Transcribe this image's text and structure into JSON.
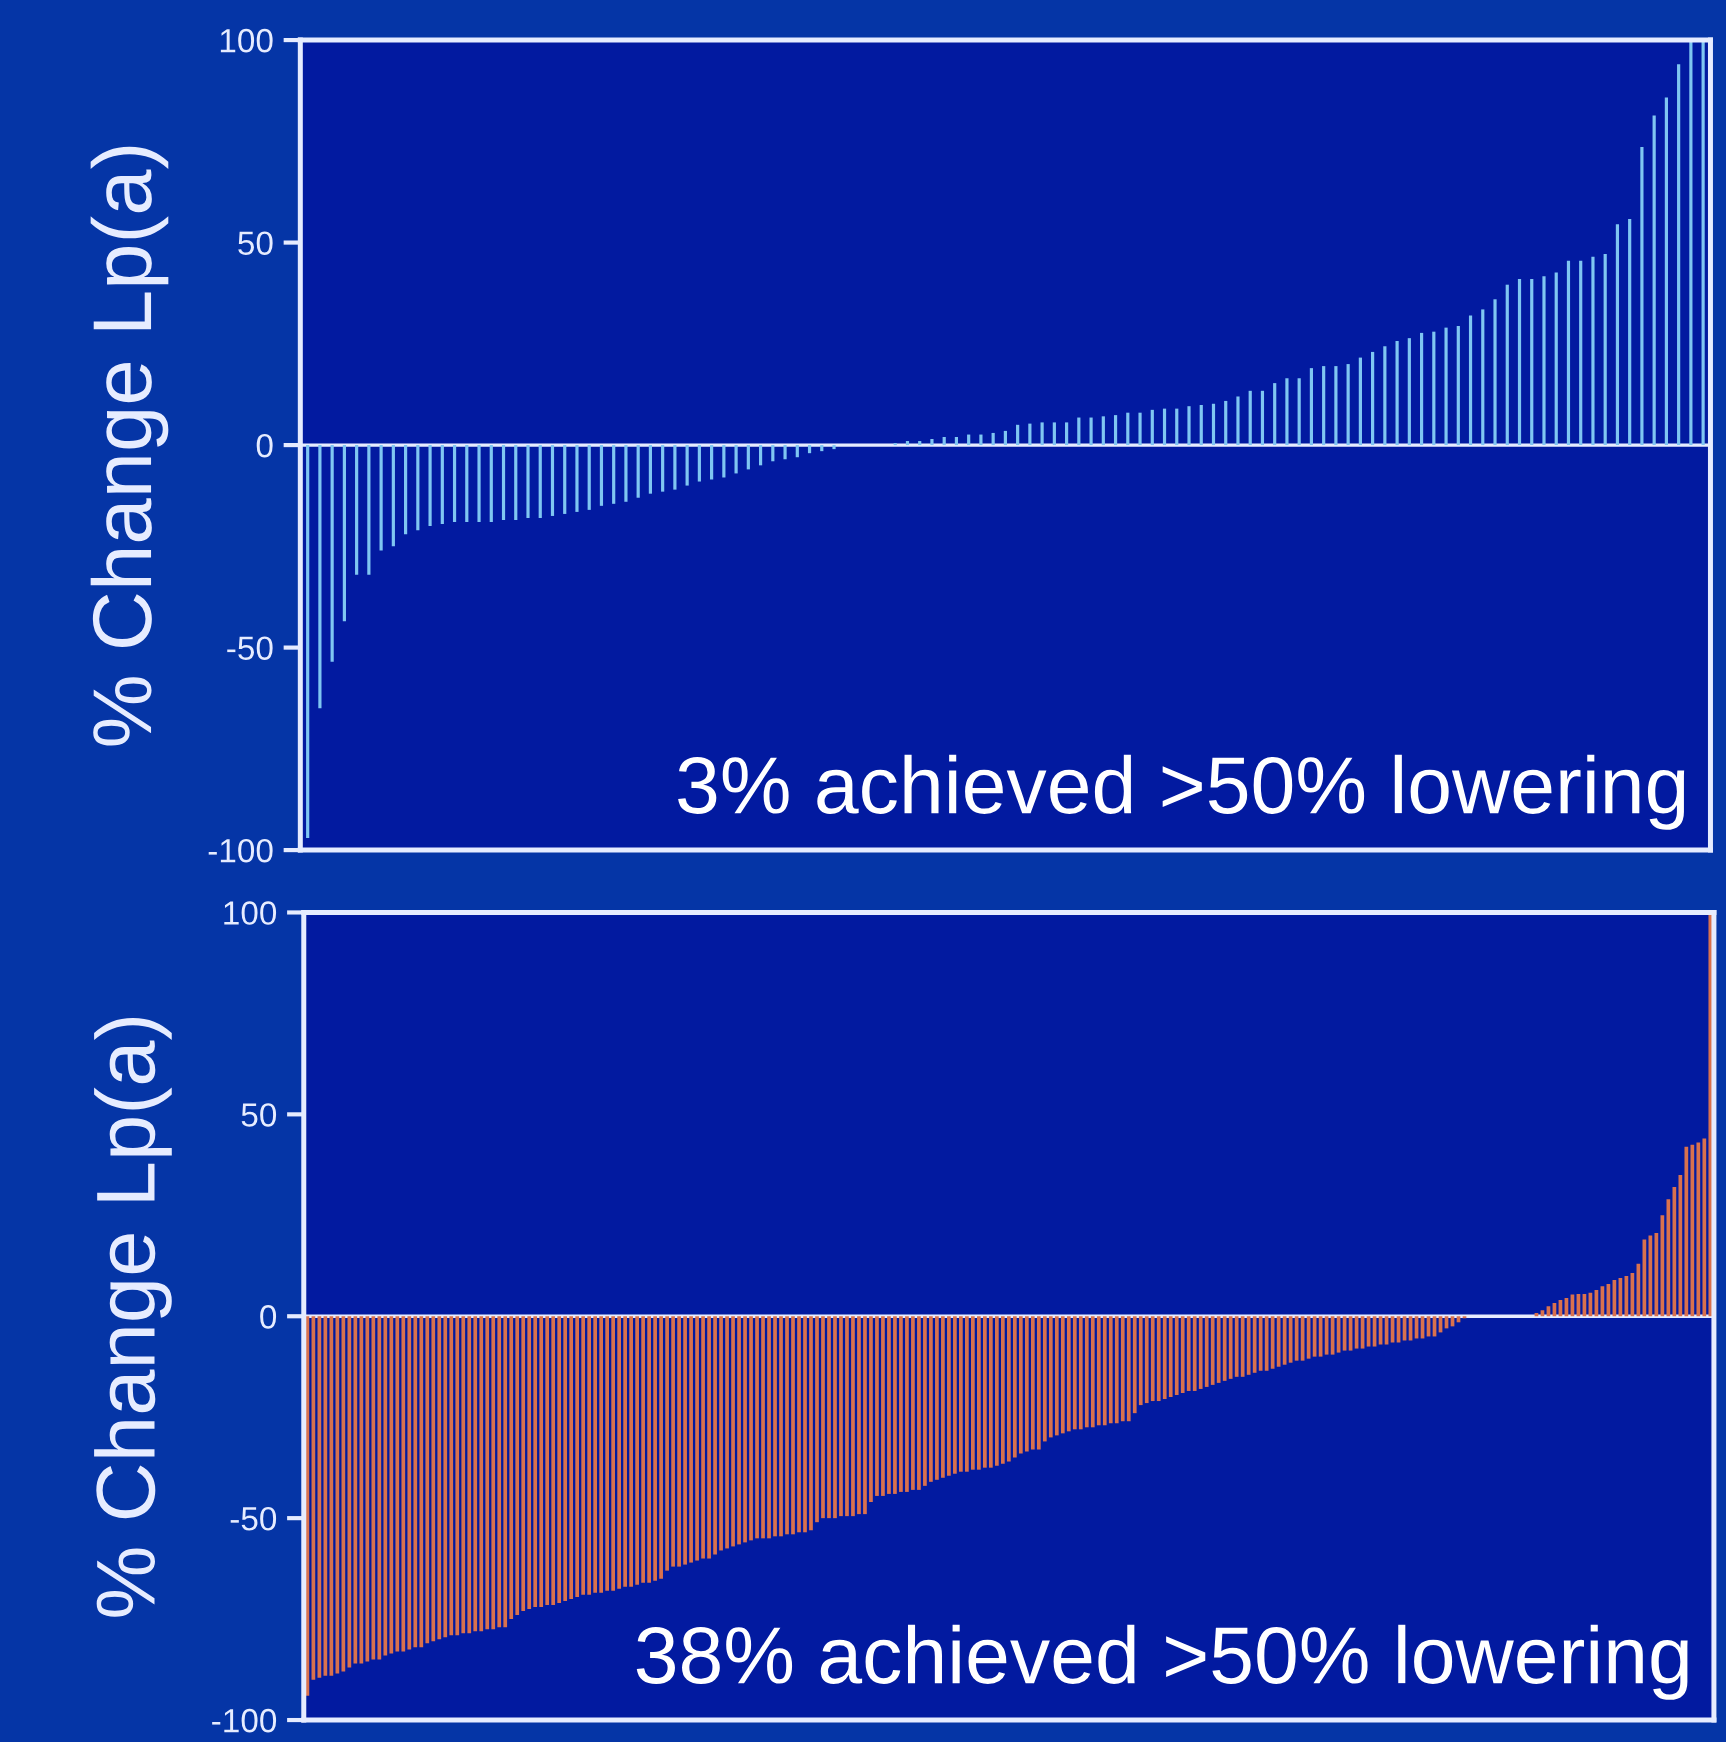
{
  "chart_data": [
    {
      "type": "bar",
      "ylabel": "% Change Lp(a)",
      "color": "#7fc6f2",
      "ylim": [
        -100,
        100
      ],
      "yticks": [
        -100,
        -50,
        0,
        50,
        100
      ],
      "grid": false,
      "legend": false,
      "tick_labels": "y",
      "ref_lines": [
        {
          "axis": "y",
          "value": 0,
          "color": "#e6ecff"
        }
      ],
      "annotations": [
        "3% achieved >50% lowering"
      ],
      "categories": [
        null,
        null,
        null,
        null,
        null,
        null,
        null,
        null,
        null,
        null,
        null,
        null,
        null,
        null,
        null,
        null,
        null,
        null,
        null,
        null,
        null,
        null,
        null,
        null,
        null,
        null,
        null,
        null,
        null,
        null,
        null,
        null,
        null,
        null,
        null,
        null,
        null,
        null,
        null,
        null,
        null,
        null,
        null,
        null,
        null,
        null,
        null,
        null,
        null,
        null,
        null,
        null,
        null,
        null,
        null,
        null,
        null,
        null,
        null,
        null,
        null,
        null,
        null,
        null,
        null,
        null,
        null,
        null,
        null,
        null,
        null,
        null,
        null,
        null,
        null,
        null,
        null,
        null,
        null,
        null,
        null,
        null,
        null,
        null,
        null,
        null,
        null,
        null,
        null,
        null,
        null,
        null,
        null,
        null,
        null,
        null,
        null,
        null,
        null,
        null,
        null,
        null,
        null,
        null,
        null,
        null,
        null,
        null,
        null,
        null,
        null,
        null,
        null,
        null,
        null
      ],
      "values": [
        -97,
        -65,
        -53.5,
        -43.5,
        -32,
        -32,
        -26,
        -25,
        -22,
        -21,
        -20,
        -19.5,
        -19,
        -19,
        -19,
        -19,
        -18.5,
        -18.5,
        -18,
        -18,
        -17.5,
        -17,
        -16.5,
        -16,
        -15,
        -14.5,
        -14,
        -13,
        -12,
        -11.5,
        -11,
        -10,
        -9,
        -8.5,
        -8,
        -7,
        -6,
        -5,
        -4,
        -3.5,
        -3,
        -2,
        -1.5,
        -1,
        0,
        0,
        0,
        0,
        0.5,
        1,
        1,
        1.5,
        2,
        2,
        2.6,
        2.6,
        3,
        3.5,
        5,
        5.3,
        5.6,
        5.6,
        5.6,
        6.8,
        6.8,
        7.1,
        7.4,
        8,
        8,
        8.7,
        9,
        9,
        9.6,
        9.9,
        10.2,
        10.9,
        12,
        13.4,
        13.4,
        15.3,
        16.5,
        16.5,
        19,
        19.5,
        19.5,
        20,
        21.6,
        23,
        24.4,
        25.7,
        26.4,
        27.7,
        28,
        29,
        29.4,
        32,
        33.5,
        36,
        39.6,
        41,
        41,
        41.7,
        42.6,
        45.5,
        45.5,
        46.5,
        47.2,
        54.5,
        55.8,
        73.6,
        81.4,
        85.8,
        94,
        100,
        100
      ]
    },
    {
      "type": "bar",
      "ylabel": "% Change Lp(a)",
      "color": "#d9714e",
      "ylim": [
        -100,
        100
      ],
      "yticks": [
        -100,
        -50,
        0,
        50,
        100
      ],
      "grid": false,
      "legend": false,
      "tick_labels": "y",
      "ref_lines": [
        {
          "axis": "y",
          "value": 0,
          "color": "#e6ecff"
        }
      ],
      "annotations": [
        "38% achieved >50% lowering"
      ],
      "categories": [
        null,
        null,
        null,
        null,
        null,
        null,
        null,
        null,
        null,
        null,
        null,
        null,
        null,
        null,
        null,
        null,
        null,
        null,
        null,
        null,
        null,
        null,
        null,
        null,
        null,
        null,
        null,
        null,
        null,
        null,
        null,
        null,
        null,
        null,
        null,
        null,
        null,
        null,
        null,
        null,
        null,
        null,
        null,
        null,
        null,
        null,
        null,
        null,
        null,
        null,
        null,
        null,
        null,
        null,
        null,
        null,
        null,
        null,
        null,
        null,
        null,
        null,
        null,
        null,
        null,
        null,
        null,
        null,
        null,
        null,
        null,
        null,
        null,
        null,
        null,
        null,
        null,
        null,
        null,
        null,
        null,
        null,
        null,
        null,
        null,
        null,
        null,
        null,
        null,
        null,
        null,
        null,
        null,
        null,
        null,
        null,
        null,
        null,
        null,
        null,
        null,
        null,
        null,
        null,
        null,
        null,
        null,
        null,
        null,
        null,
        null,
        null,
        null,
        null,
        null,
        null,
        null,
        null,
        null,
        null,
        null,
        null,
        null,
        null,
        null,
        null,
        null,
        null,
        null,
        null,
        null,
        null,
        null,
        null,
        null,
        null,
        null,
        null,
        null,
        null,
        null,
        null,
        null,
        null,
        null,
        null,
        null,
        null,
        null,
        null,
        null,
        null,
        null,
        null,
        null,
        null,
        null,
        null,
        null,
        null,
        null,
        null,
        null,
        null,
        null,
        null,
        null,
        null,
        null,
        null,
        null,
        null,
        null,
        null,
        null,
        null,
        null,
        null,
        null,
        null,
        null,
        null,
        null,
        null,
        null,
        null,
        null,
        null,
        null,
        null,
        null,
        null,
        null,
        null,
        null,
        null,
        null,
        null,
        null,
        null,
        null,
        null,
        null,
        null,
        null,
        null,
        null,
        null,
        null,
        null,
        null,
        null,
        null,
        null,
        null,
        null,
        null,
        null,
        null,
        null,
        null,
        null,
        null,
        null,
        null,
        null,
        null,
        null,
        null,
        null,
        null,
        null,
        null,
        null,
        null
      ],
      "values": [
        -94,
        -90,
        -89.5,
        -89,
        -89,
        -88.5,
        -88,
        -87,
        -86,
        -86,
        -85.5,
        -85,
        -85,
        -84,
        -83.5,
        -83,
        -83,
        -82.5,
        -82,
        -82,
        -81,
        -80.5,
        -80,
        -79.5,
        -79,
        -79,
        -78.5,
        -78.5,
        -78,
        -78,
        -77.5,
        -77.5,
        -77,
        -77,
        -75,
        -74,
        -73,
        -72.5,
        -72,
        -72,
        -71.5,
        -71.5,
        -71,
        -70.5,
        -70,
        -69.5,
        -69,
        -69,
        -68.5,
        -68.5,
        -68,
        -68,
        -67.5,
        -67,
        -67,
        -66.5,
        -66,
        -66,
        -65.5,
        -65,
        -63,
        -62,
        -62,
        -61.5,
        -61,
        -60.5,
        -60,
        -60,
        -59,
        -58,
        -57.5,
        -57,
        -56.5,
        -56,
        -55.5,
        -55,
        -55,
        -55,
        -54.5,
        -54.5,
        -54,
        -54,
        -53.5,
        -53.5,
        -53,
        -51,
        -50,
        -50,
        -50,
        -49.5,
        -49.5,
        -49.5,
        -49,
        -49,
        -46,
        -44.5,
        -44.5,
        -44,
        -44,
        -43.5,
        -43.5,
        -43,
        -43,
        -42,
        -41,
        -40.5,
        -40,
        -39.5,
        -39,
        -38.5,
        -38.5,
        -38,
        -38,
        -37.5,
        -37.5,
        -37,
        -36.5,
        -36,
        -35,
        -34,
        -33.5,
        -33,
        -33,
        -31,
        -30,
        -29.5,
        -29,
        -28.5,
        -28,
        -28,
        -27.5,
        -27.5,
        -27,
        -27,
        -26.5,
        -26.5,
        -26,
        -26,
        -24,
        -22,
        -21.5,
        -21,
        -21,
        -20.5,
        -20,
        -19.5,
        -19,
        -18.5,
        -18.5,
        -18,
        -17.5,
        -17,
        -16.5,
        -16,
        -15.5,
        -15,
        -15,
        -14.5,
        -14,
        -13.5,
        -13.5,
        -13,
        -12.5,
        -12,
        -11.5,
        -11,
        -11,
        -10.5,
        -10,
        -10,
        -9.5,
        -9.5,
        -9,
        -8.5,
        -8.5,
        -8,
        -8,
        -7.5,
        -7.5,
        -7,
        -7,
        -6.5,
        -6.5,
        -6,
        -6,
        -5.5,
        -5.5,
        -5,
        -5,
        -4,
        -3,
        -2.5,
        -1.5,
        -0.5,
        0,
        0,
        0,
        0,
        0,
        0,
        0,
        0,
        0,
        0,
        0,
        0.8,
        1.5,
        2.5,
        3.3,
        4,
        4.5,
        5.4,
        5.5,
        5.5,
        5.8,
        6.5,
        7.4,
        8,
        9,
        9.5,
        10,
        10.7,
        13,
        19,
        20,
        20.6,
        25,
        29,
        32,
        35,
        42,
        42.5,
        43,
        44,
        100
      ]
    }
  ]
}
